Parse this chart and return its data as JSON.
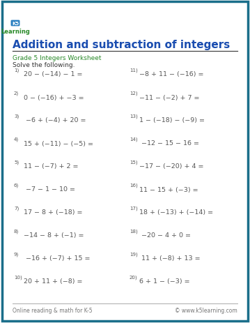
{
  "title": "Addition and subtraction of integers",
  "subtitle": "Grade 5 Integers Worksheet",
  "instruction": "Solve the following.",
  "footer_left": "Online reading & math for K-5",
  "footer_right": "© www.k5learning.com",
  "bg_color": "#ffffff",
  "border_color": "#1a6e8a",
  "title_color": "#1a4db0",
  "subtitle_color": "#2a8a2a",
  "problem_color": "#555555",
  "instruction_color": "#333333",
  "footer_color": "#777777",
  "problems_left": [
    {
      "num": "1)",
      "expr": "20 − (−14) − 1 ="
    },
    {
      "num": "2)",
      "expr": "0 − (−16) + −3 ="
    },
    {
      "num": "3)",
      "expr": " −6 + (−4) + 20 ="
    },
    {
      "num": "4)",
      "expr": "15 + (−11) − (−5) ="
    },
    {
      "num": "5)",
      "expr": "11 − (−7) + 2 ="
    },
    {
      "num": "6)",
      "expr": " −7 − 1 − 10 ="
    },
    {
      "num": "7)",
      "expr": "17 − 8 + (−18) ="
    },
    {
      "num": "8)",
      "expr": "−14 − 8 + (−1) ="
    },
    {
      "num": "9)",
      "expr": " −16 + (−7) + 15 ="
    },
    {
      "num": "10)",
      "expr": "20 + 11 + (−8) ="
    }
  ],
  "problems_right": [
    {
      "num": "11)",
      "expr": "−8 + 11 − (−16) ="
    },
    {
      "num": "12)",
      "expr": "−11 − (−2) + 7 ="
    },
    {
      "num": "13)",
      "expr": "1 − (−18) − (−9) ="
    },
    {
      "num": "14)",
      "expr": " −12 − 15 − 16 ="
    },
    {
      "num": "15)",
      "expr": "−17 − (−20) + 4 ="
    },
    {
      "num": "16)",
      "expr": "11 − 15 + (−3) ="
    },
    {
      "num": "17)",
      "expr": "18 + (−13) + (−14) ="
    },
    {
      "num": "18)",
      "expr": " −20 − 4 + 0 ="
    },
    {
      "num": "19)",
      "expr": " 11 + (−8) + 13 ="
    },
    {
      "num": "20)",
      "expr": "6 + 1 − (−3) ="
    }
  ]
}
